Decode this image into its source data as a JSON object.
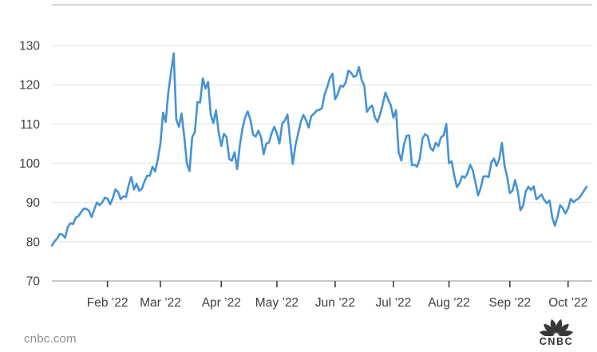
{
  "chart_data": {
    "type": "line",
    "title": "",
    "grid": true,
    "legend": false,
    "ylim": [
      70,
      140
    ],
    "y_ticks": [
      70,
      80,
      90,
      100,
      110,
      120,
      130
    ],
    "x_ticks": [
      {
        "label": "Feb ’22",
        "index": 21
      },
      {
        "label": "Mar ’22",
        "index": 41
      },
      {
        "label": "Apr ’22",
        "index": 64
      },
      {
        "label": "May ’22",
        "index": 85
      },
      {
        "label": "Jun ’22",
        "index": 107
      },
      {
        "label": "Jul ’22",
        "index": 129
      },
      {
        "label": "Aug ’22",
        "index": 150
      },
      {
        "label": "Sep ’22",
        "index": 173
      },
      {
        "label": "Oct ’22",
        "index": 195
      }
    ],
    "values": [
      79.0,
      80.1,
      80.8,
      82.0,
      81.8,
      81.0,
      83.7,
      84.7,
      84.5,
      86.1,
      86.5,
      87.5,
      88.4,
      88.4,
      87.9,
      86.3,
      88.2,
      90.0,
      89.3,
      90.0,
      91.2,
      91.0,
      89.5,
      91.1,
      93.3,
      92.7,
      90.8,
      91.6,
      91.4,
      94.4,
      96.5,
      93.3,
      94.8,
      93.0,
      93.5,
      95.4,
      96.8,
      96.8,
      99.1,
      97.9,
      101.0,
      105.0,
      112.9,
      110.5,
      118.1,
      123.2,
      128.0,
      111.1,
      109.3,
      112.7,
      106.9,
      99.9,
      98.0,
      106.6,
      107.9,
      115.6,
      115.5,
      121.6,
      119.0,
      120.7,
      112.5,
      110.2,
      113.5,
      107.9,
      104.4,
      107.5,
      106.6,
      101.1,
      100.6,
      102.8,
      98.5,
      104.6,
      108.8,
      111.7,
      113.2,
      111.0,
      107.3,
      106.8,
      108.3,
      106.7,
      102.3,
      105.0,
      105.3,
      107.6,
      109.3,
      107.6,
      105.0,
      110.1,
      110.9,
      112.4,
      105.9,
      99.8,
      104.5,
      107.5,
      110.5,
      112.3,
      111.0,
      109.1,
      112.0,
      112.6,
      113.4,
      113.6,
      114.0,
      117.4,
      119.4,
      121.7,
      122.8,
      116.3,
      117.6,
      119.7,
      119.5,
      120.6,
      123.6,
      123.1,
      122.0,
      122.3,
      124.5,
      121.2,
      119.8,
      113.1,
      114.1,
      114.7,
      111.7,
      110.5,
      112.5,
      115.1,
      118.0,
      116.3,
      114.8,
      111.6,
      113.5,
      102.8,
      100.7,
      104.7,
      107.0,
      107.1,
      99.5,
      99.6,
      99.1,
      101.2,
      106.3,
      107.4,
      106.9,
      103.9,
      103.2,
      105.2,
      104.4,
      106.6,
      107.1,
      110.0,
      100.0,
      100.5,
      96.8,
      93.9,
      94.9,
      96.7,
      96.3,
      97.4,
      99.6,
      98.2,
      95.1,
      91.8,
      93.7,
      96.6,
      96.7,
      96.5,
      100.2,
      101.2,
      99.3,
      101.0,
      105.2,
      99.3,
      96.5,
      92.4,
      93.0,
      95.7,
      92.8,
      88.0,
      89.2,
      92.8,
      94.0,
      93.2,
      94.1,
      90.8,
      91.4,
      92.0,
      90.6,
      89.8,
      90.5,
      86.2,
      84.1,
      86.3,
      89.3,
      88.5,
      87.2,
      88.5,
      90.9,
      90.1,
      90.6,
      91.0,
      91.9,
      93.0,
      94.0
    ]
  },
  "colors": {
    "line": "#4593d4",
    "grid": "#e4e4e4",
    "axis": "#c9c9c9",
    "tick": "#3f3f3f",
    "label": "#3f3f3f",
    "watermark": "#8e8e8e",
    "logo": "#343434"
  },
  "footer": {
    "site": "cnbc.com",
    "brand": "CNBC"
  }
}
